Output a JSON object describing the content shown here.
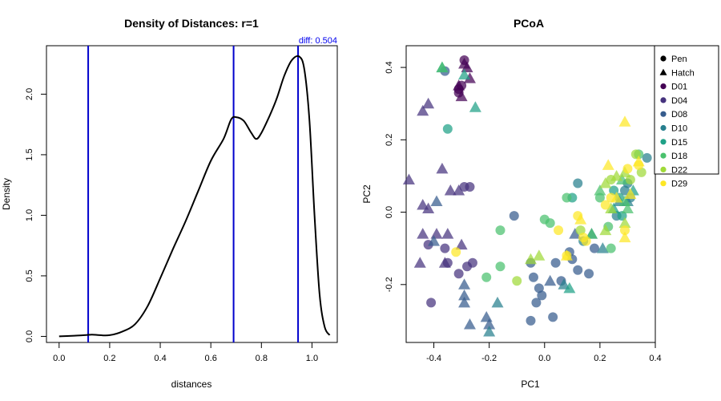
{
  "chart_data": [
    {
      "type": "line",
      "title": "Density of Distances: r=1",
      "xlabel": "distances",
      "ylabel": "Density",
      "xlim": [
        -0.05,
        1.1
      ],
      "ylim": [
        -0.05,
        2.4
      ],
      "xticks": [
        0.0,
        0.2,
        0.4,
        0.6,
        0.8,
        1.0
      ],
      "xtick_labels": [
        "0.0",
        "0.2",
        "0.4",
        "0.6",
        "0.8",
        "1.0"
      ],
      "yticks": [
        0.0,
        0.5,
        1.0,
        1.5,
        2.0
      ],
      "ytick_labels": [
        "0.0",
        "0.5",
        "1.0",
        "1.5",
        "2.0"
      ],
      "annotation": "diff: 0.504",
      "vlines": [
        0.115,
        0.69,
        0.945
      ],
      "vline_color": "#0000cc",
      "line_color": "#000000",
      "density": {
        "x": [
          0.0,
          0.05,
          0.1,
          0.13,
          0.16,
          0.2,
          0.25,
          0.3,
          0.35,
          0.4,
          0.45,
          0.5,
          0.55,
          0.6,
          0.65,
          0.68,
          0.7,
          0.73,
          0.76,
          0.78,
          0.8,
          0.83,
          0.86,
          0.89,
          0.92,
          0.95,
          0.97,
          0.99,
          1.01,
          1.03,
          1.05,
          1.07
        ],
        "y": [
          0.0,
          0.005,
          0.01,
          0.015,
          0.01,
          0.01,
          0.04,
          0.1,
          0.25,
          0.48,
          0.72,
          0.95,
          1.2,
          1.45,
          1.63,
          1.79,
          1.81,
          1.78,
          1.68,
          1.63,
          1.68,
          1.81,
          1.96,
          2.15,
          2.28,
          2.31,
          2.2,
          1.78,
          1.0,
          0.35,
          0.08,
          0.01
        ]
      }
    },
    {
      "type": "scatter",
      "title": "PCoA",
      "xlabel": "PC1",
      "ylabel": "PC2",
      "xlim": [
        -0.5,
        0.4
      ],
      "ylim": [
        -0.36,
        0.46
      ],
      "xticks": [
        -0.4,
        -0.2,
        0.0,
        0.2,
        0.4
      ],
      "xtick_labels": [
        "-0.4",
        "-0.2",
        "0.0",
        "0.2",
        "0.4"
      ],
      "yticks": [
        -0.2,
        0.0,
        0.2,
        0.4
      ],
      "ytick_labels": [
        "-0.2",
        "0.0",
        "0.2",
        "0.4"
      ],
      "legend_position": "top-right",
      "legend": {
        "shapes": [
          {
            "label": "Pen",
            "shape": "circle"
          },
          {
            "label": "Hatch",
            "shape": "triangle"
          }
        ],
        "groups": [
          {
            "label": "D01",
            "color": "#440154"
          },
          {
            "label": "D04",
            "color": "#46337e"
          },
          {
            "label": "D08",
            "color": "#365c8d"
          },
          {
            "label": "D10",
            "color": "#277f8e"
          },
          {
            "label": "D15",
            "color": "#1fa187"
          },
          {
            "label": "D18",
            "color": "#4ac16d"
          },
          {
            "label": "D22",
            "color": "#a0da39"
          },
          {
            "label": "D29",
            "color": "#fde725"
          }
        ]
      },
      "points": [
        {
          "x": -0.29,
          "y": 0.42,
          "s": "c",
          "g": "D01"
        },
        {
          "x": -0.3,
          "y": 0.35,
          "s": "c",
          "g": "D01"
        },
        {
          "x": -0.31,
          "y": 0.34,
          "s": "c",
          "g": "D01"
        },
        {
          "x": -0.31,
          "y": 0.33,
          "s": "c",
          "g": "D01"
        },
        {
          "x": -0.29,
          "y": 0.41,
          "s": "t",
          "g": "D01"
        },
        {
          "x": -0.28,
          "y": 0.4,
          "s": "t",
          "g": "D01"
        },
        {
          "x": -0.31,
          "y": 0.35,
          "s": "t",
          "g": "D01"
        },
        {
          "x": -0.27,
          "y": 0.37,
          "s": "t",
          "g": "D01"
        },
        {
          "x": -0.3,
          "y": 0.32,
          "s": "t",
          "g": "D01"
        },
        {
          "x": -0.29,
          "y": 0.07,
          "s": "c",
          "g": "D04"
        },
        {
          "x": -0.27,
          "y": 0.07,
          "s": "c",
          "g": "D04"
        },
        {
          "x": -0.42,
          "y": -0.09,
          "s": "c",
          "g": "D04"
        },
        {
          "x": -0.36,
          "y": -0.1,
          "s": "c",
          "g": "D04"
        },
        {
          "x": -0.35,
          "y": -0.14,
          "s": "c",
          "g": "D04"
        },
        {
          "x": -0.28,
          "y": -0.15,
          "s": "c",
          "g": "D04"
        },
        {
          "x": -0.26,
          "y": -0.14,
          "s": "c",
          "g": "D04"
        },
        {
          "x": -0.41,
          "y": -0.25,
          "s": "c",
          "g": "D04"
        },
        {
          "x": -0.31,
          "y": -0.17,
          "s": "c",
          "g": "D04"
        },
        {
          "x": -0.44,
          "y": 0.28,
          "s": "t",
          "g": "D04"
        },
        {
          "x": -0.42,
          "y": 0.3,
          "s": "t",
          "g": "D04"
        },
        {
          "x": -0.37,
          "y": 0.12,
          "s": "t",
          "g": "D04"
        },
        {
          "x": -0.49,
          "y": 0.09,
          "s": "t",
          "g": "D04"
        },
        {
          "x": -0.34,
          "y": 0.06,
          "s": "t",
          "g": "D04"
        },
        {
          "x": -0.31,
          "y": 0.06,
          "s": "t",
          "g": "D04"
        },
        {
          "x": -0.44,
          "y": -0.06,
          "s": "t",
          "g": "D04"
        },
        {
          "x": -0.39,
          "y": -0.06,
          "s": "t",
          "g": "D04"
        },
        {
          "x": -0.35,
          "y": -0.06,
          "s": "t",
          "g": "D04"
        },
        {
          "x": -0.3,
          "y": -0.09,
          "s": "t",
          "g": "D04"
        },
        {
          "x": -0.45,
          "y": -0.14,
          "s": "t",
          "g": "D04"
        },
        {
          "x": -0.36,
          "y": -0.14,
          "s": "t",
          "g": "D04"
        },
        {
          "x": -0.44,
          "y": 0.02,
          "s": "t",
          "g": "D04"
        },
        {
          "x": -0.42,
          "y": 0.01,
          "s": "t",
          "g": "D04"
        },
        {
          "x": -0.36,
          "y": 0.39,
          "s": "c",
          "g": "D08"
        },
        {
          "x": -0.11,
          "y": -0.01,
          "s": "c",
          "g": "D08"
        },
        {
          "x": -0.05,
          "y": -0.14,
          "s": "c",
          "g": "D08"
        },
        {
          "x": -0.04,
          "y": -0.18,
          "s": "c",
          "g": "D08"
        },
        {
          "x": -0.02,
          "y": -0.21,
          "s": "c",
          "g": "D08"
        },
        {
          "x": -0.03,
          "y": -0.25,
          "s": "c",
          "g": "D08"
        },
        {
          "x": -0.01,
          "y": -0.23,
          "s": "c",
          "g": "D08"
        },
        {
          "x": 0.03,
          "y": -0.29,
          "s": "c",
          "g": "D08"
        },
        {
          "x": 0.04,
          "y": -0.14,
          "s": "c",
          "g": "D08"
        },
        {
          "x": 0.06,
          "y": -0.19,
          "s": "c",
          "g": "D08"
        },
        {
          "x": 0.09,
          "y": -0.11,
          "s": "c",
          "g": "D08"
        },
        {
          "x": 0.1,
          "y": -0.13,
          "s": "c",
          "g": "D08"
        },
        {
          "x": 0.12,
          "y": -0.16,
          "s": "c",
          "g": "D08"
        },
        {
          "x": 0.16,
          "y": -0.17,
          "s": "c",
          "g": "D08"
        },
        {
          "x": 0.18,
          "y": -0.1,
          "s": "c",
          "g": "D08"
        },
        {
          "x": -0.05,
          "y": -0.3,
          "s": "c",
          "g": "D08"
        },
        {
          "x": -0.29,
          "y": -0.25,
          "s": "t",
          "g": "D08"
        },
        {
          "x": -0.29,
          "y": -0.2,
          "s": "t",
          "g": "D08"
        },
        {
          "x": -0.21,
          "y": -0.29,
          "s": "t",
          "g": "D08"
        },
        {
          "x": -0.2,
          "y": -0.31,
          "s": "t",
          "g": "D08"
        },
        {
          "x": -0.27,
          "y": -0.31,
          "s": "t",
          "g": "D08"
        },
        {
          "x": 0.02,
          "y": -0.19,
          "s": "t",
          "g": "D08"
        },
        {
          "x": 0.11,
          "y": -0.06,
          "s": "t",
          "g": "D08"
        },
        {
          "x": -0.39,
          "y": 0.03,
          "s": "t",
          "g": "D08"
        },
        {
          "x": -0.4,
          "y": -0.08,
          "s": "t",
          "g": "D08"
        },
        {
          "x": -0.29,
          "y": -0.23,
          "s": "t",
          "g": "D08"
        },
        {
          "x": -0.2,
          "y": -0.33,
          "s": "t",
          "g": "D10"
        },
        {
          "x": -0.17,
          "y": -0.25,
          "s": "t",
          "g": "D10"
        },
        {
          "x": 0.12,
          "y": 0.08,
          "s": "c",
          "g": "D10"
        },
        {
          "x": 0.26,
          "y": -0.01,
          "s": "c",
          "g": "D10"
        },
        {
          "x": 0.29,
          "y": 0.06,
          "s": "c",
          "g": "D10"
        },
        {
          "x": 0.31,
          "y": 0.04,
          "s": "c",
          "g": "D10"
        },
        {
          "x": 0.3,
          "y": 0.08,
          "s": "c",
          "g": "D10"
        },
        {
          "x": 0.37,
          "y": 0.15,
          "s": "c",
          "g": "D10"
        },
        {
          "x": 0.14,
          "y": -0.08,
          "s": "c",
          "g": "D10"
        },
        {
          "x": 0.27,
          "y": 0.03,
          "s": "t",
          "g": "D10"
        },
        {
          "x": 0.3,
          "y": 0.03,
          "s": "t",
          "g": "D10"
        },
        {
          "x": 0.07,
          "y": -0.2,
          "s": "t",
          "g": "D10"
        },
        {
          "x": 0.21,
          "y": -0.1,
          "s": "t",
          "g": "D10"
        },
        {
          "x": 0.17,
          "y": -0.06,
          "s": "t",
          "g": "D10"
        },
        {
          "x": -0.35,
          "y": 0.23,
          "s": "c",
          "g": "D15"
        },
        {
          "x": 0.1,
          "y": 0.04,
          "s": "c",
          "g": "D15"
        },
        {
          "x": 0.25,
          "y": 0.06,
          "s": "c",
          "g": "D15"
        },
        {
          "x": 0.27,
          "y": 0.04,
          "s": "c",
          "g": "D15"
        },
        {
          "x": 0.28,
          "y": -0.01,
          "s": "c",
          "g": "D15"
        },
        {
          "x": -0.25,
          "y": 0.29,
          "s": "t",
          "g": "D15"
        },
        {
          "x": -0.37,
          "y": 0.4,
          "s": "t",
          "g": "D15"
        },
        {
          "x": -0.29,
          "y": 0.38,
          "s": "t",
          "g": "D15"
        },
        {
          "x": 0.32,
          "y": 0.06,
          "s": "t",
          "g": "D15"
        },
        {
          "x": 0.25,
          "y": 0.01,
          "s": "t",
          "g": "D15"
        },
        {
          "x": 0.09,
          "y": -0.21,
          "s": "t",
          "g": "D15"
        },
        {
          "x": -0.16,
          "y": -0.05,
          "s": "c",
          "g": "D18"
        },
        {
          "x": -0.16,
          "y": -0.15,
          "s": "c",
          "g": "D18"
        },
        {
          "x": -0.21,
          "y": -0.18,
          "s": "c",
          "g": "D18"
        },
        {
          "x": 0.0,
          "y": -0.02,
          "s": "c",
          "g": "D18"
        },
        {
          "x": 0.02,
          "y": -0.03,
          "s": "c",
          "g": "D18"
        },
        {
          "x": 0.08,
          "y": 0.04,
          "s": "c",
          "g": "D18"
        },
        {
          "x": 0.2,
          "y": 0.04,
          "s": "c",
          "g": "D18"
        },
        {
          "x": 0.23,
          "y": -0.04,
          "s": "c",
          "g": "D18"
        },
        {
          "x": 0.24,
          "y": -0.1,
          "s": "c",
          "g": "D18"
        },
        {
          "x": 0.34,
          "y": 0.16,
          "s": "c",
          "g": "D18"
        },
        {
          "x": -0.37,
          "y": 0.4,
          "s": "t",
          "g": "D18"
        },
        {
          "x": 0.2,
          "y": 0.06,
          "s": "t",
          "g": "D18"
        },
        {
          "x": 0.28,
          "y": 0.09,
          "s": "t",
          "g": "D18"
        },
        {
          "x": 0.3,
          "y": 0.01,
          "s": "t",
          "g": "D18"
        },
        {
          "x": 0.29,
          "y": 0.03,
          "s": "t",
          "g": "D18"
        },
        {
          "x": 0.17,
          "y": -0.06,
          "s": "t",
          "g": "D18"
        },
        {
          "x": -0.1,
          "y": -0.19,
          "s": "c",
          "g": "D22"
        },
        {
          "x": 0.13,
          "y": -0.05,
          "s": "c",
          "g": "D22"
        },
        {
          "x": 0.24,
          "y": 0.09,
          "s": "c",
          "g": "D22"
        },
        {
          "x": 0.31,
          "y": 0.09,
          "s": "c",
          "g": "D22"
        },
        {
          "x": 0.33,
          "y": 0.16,
          "s": "c",
          "g": "D22"
        },
        {
          "x": 0.35,
          "y": 0.11,
          "s": "c",
          "g": "D22"
        },
        {
          "x": -0.05,
          "y": -0.13,
          "s": "t",
          "g": "D22"
        },
        {
          "x": 0.22,
          "y": 0.08,
          "s": "t",
          "g": "D22"
        },
        {
          "x": 0.26,
          "y": 0.1,
          "s": "t",
          "g": "D22"
        },
        {
          "x": 0.29,
          "y": 0.11,
          "s": "t",
          "g": "D22"
        },
        {
          "x": 0.24,
          "y": 0.01,
          "s": "t",
          "g": "D22"
        },
        {
          "x": 0.22,
          "y": -0.05,
          "s": "t",
          "g": "D22"
        },
        {
          "x": 0.29,
          "y": -0.03,
          "s": "t",
          "g": "D22"
        },
        {
          "x": -0.02,
          "y": -0.12,
          "s": "t",
          "g": "D22"
        },
        {
          "x": -0.32,
          "y": -0.11,
          "s": "c",
          "g": "D29"
        },
        {
          "x": 0.05,
          "y": -0.05,
          "s": "c",
          "g": "D29"
        },
        {
          "x": 0.08,
          "y": -0.12,
          "s": "c",
          "g": "D29"
        },
        {
          "x": 0.14,
          "y": -0.07,
          "s": "c",
          "g": "D29"
        },
        {
          "x": 0.15,
          "y": -0.08,
          "s": "c",
          "g": "D29"
        },
        {
          "x": 0.12,
          "y": -0.01,
          "s": "c",
          "g": "D29"
        },
        {
          "x": 0.22,
          "y": 0.02,
          "s": "c",
          "g": "D29"
        },
        {
          "x": 0.24,
          "y": 0.04,
          "s": "c",
          "g": "D29"
        },
        {
          "x": 0.29,
          "y": -0.05,
          "s": "c",
          "g": "D29"
        },
        {
          "x": 0.3,
          "y": 0.12,
          "s": "c",
          "g": "D29"
        },
        {
          "x": 0.34,
          "y": 0.13,
          "s": "c",
          "g": "D29"
        },
        {
          "x": 0.29,
          "y": 0.25,
          "s": "t",
          "g": "D29"
        },
        {
          "x": 0.23,
          "y": 0.13,
          "s": "t",
          "g": "D29"
        },
        {
          "x": 0.26,
          "y": 0.04,
          "s": "t",
          "g": "D29"
        },
        {
          "x": 0.34,
          "y": 0.14,
          "s": "t",
          "g": "D29"
        },
        {
          "x": 0.29,
          "y": -0.07,
          "s": "t",
          "g": "D29"
        },
        {
          "x": 0.13,
          "y": -0.02,
          "s": "t",
          "g": "D29"
        },
        {
          "x": 0.08,
          "y": -0.12,
          "s": "t",
          "g": "D29"
        },
        {
          "x": 0.31,
          "y": 0.05,
          "s": "t",
          "g": "D29"
        }
      ]
    }
  ]
}
